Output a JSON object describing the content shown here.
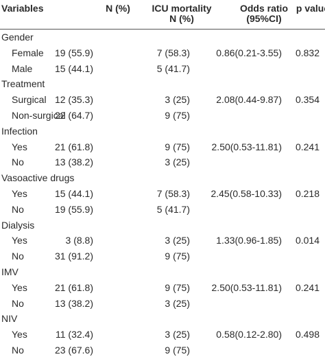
{
  "headers": {
    "variables": "Variables",
    "n": "N (%)",
    "icu_line1": "ICU mortality",
    "icu_line2": "N (%)",
    "or_line1": "Odds ratio",
    "or_line2": "(95%CI)",
    "p": "p value"
  },
  "rows": [
    {
      "label": "Gender",
      "n": "",
      "icu": "",
      "or": "",
      "p": "",
      "sub": false
    },
    {
      "label": "Female",
      "n": "19 (55.9)",
      "icu": "7 (58.3)",
      "or": "0.86(0.21-3.55)",
      "p": "0.832",
      "sub": true
    },
    {
      "label": "Male",
      "n": "15 (44.1)",
      "icu": "5 (41.7)",
      "or": "",
      "p": "",
      "sub": true
    },
    {
      "label": "Treatment",
      "n": "",
      "icu": "",
      "or": "",
      "p": "",
      "sub": false
    },
    {
      "label": "Surgical",
      "n": "12 (35.3)",
      "icu": "3 (25)",
      "or": "2.08(0.44-9.87)",
      "p": "0.354",
      "sub": true
    },
    {
      "label": "Non-surgical",
      "n": "22 (64.7)",
      "icu": "9 (75)",
      "or": "",
      "p": "",
      "sub": true
    },
    {
      "label": "Infection",
      "n": "",
      "icu": "",
      "or": "",
      "p": "",
      "sub": false
    },
    {
      "label": "Yes",
      "n": "21 (61.8)",
      "icu": "9 (75)",
      "or": "2.50(0.53-11.81)",
      "p": "0.241",
      "sub": true
    },
    {
      "label": "No",
      "n": "13 (38.2)",
      "icu": "3 (25)",
      "or": "",
      "p": "",
      "sub": true
    },
    {
      "label": "Vasoactive drugs",
      "n": "",
      "icu": "",
      "or": "",
      "p": "",
      "sub": false
    },
    {
      "label": "Yes",
      "n": "15 (44.1)",
      "icu": "7 (58.3)",
      "or": "2.45(0.58-10.33)",
      "p": "0.218",
      "sub": true
    },
    {
      "label": "No",
      "n": "19 (55.9)",
      "icu": "5 (41.7)",
      "or": "",
      "p": "",
      "sub": true
    },
    {
      "label": "Dialysis",
      "n": "",
      "icu": "",
      "or": "",
      "p": "",
      "sub": false
    },
    {
      "label": "Yes",
      "n": "3 (8.8)",
      "icu": "3 (25)",
      "or": "1.33(0.96-1.85)",
      "p": "0.014",
      "sub": true
    },
    {
      "label": "No",
      "n": "31 (91.2)",
      "icu": "9 (75)",
      "or": "",
      "p": "",
      "sub": true
    },
    {
      "label": "IMV",
      "n": "",
      "icu": "",
      "or": "",
      "p": "",
      "sub": false
    },
    {
      "label": "Yes",
      "n": "21 (61.8)",
      "icu": "9 (75)",
      "or": "2.50(0.53-11.81)",
      "p": "0.241",
      "sub": true
    },
    {
      "label": "No",
      "n": "13 (38.2)",
      "icu": "3 (25)",
      "or": "",
      "p": "",
      "sub": true
    },
    {
      "label": "NIV",
      "n": "",
      "icu": "",
      "or": "",
      "p": "",
      "sub": false
    },
    {
      "label": "Yes",
      "n": "11 (32.4)",
      "icu": "3 (25)",
      "or": "0.58(0.12-2.80)",
      "p": "0.498",
      "sub": true
    },
    {
      "label": "No",
      "n": "23 (67.6)",
      "icu": "9 (75)",
      "or": "",
      "p": "",
      "sub": true
    }
  ]
}
